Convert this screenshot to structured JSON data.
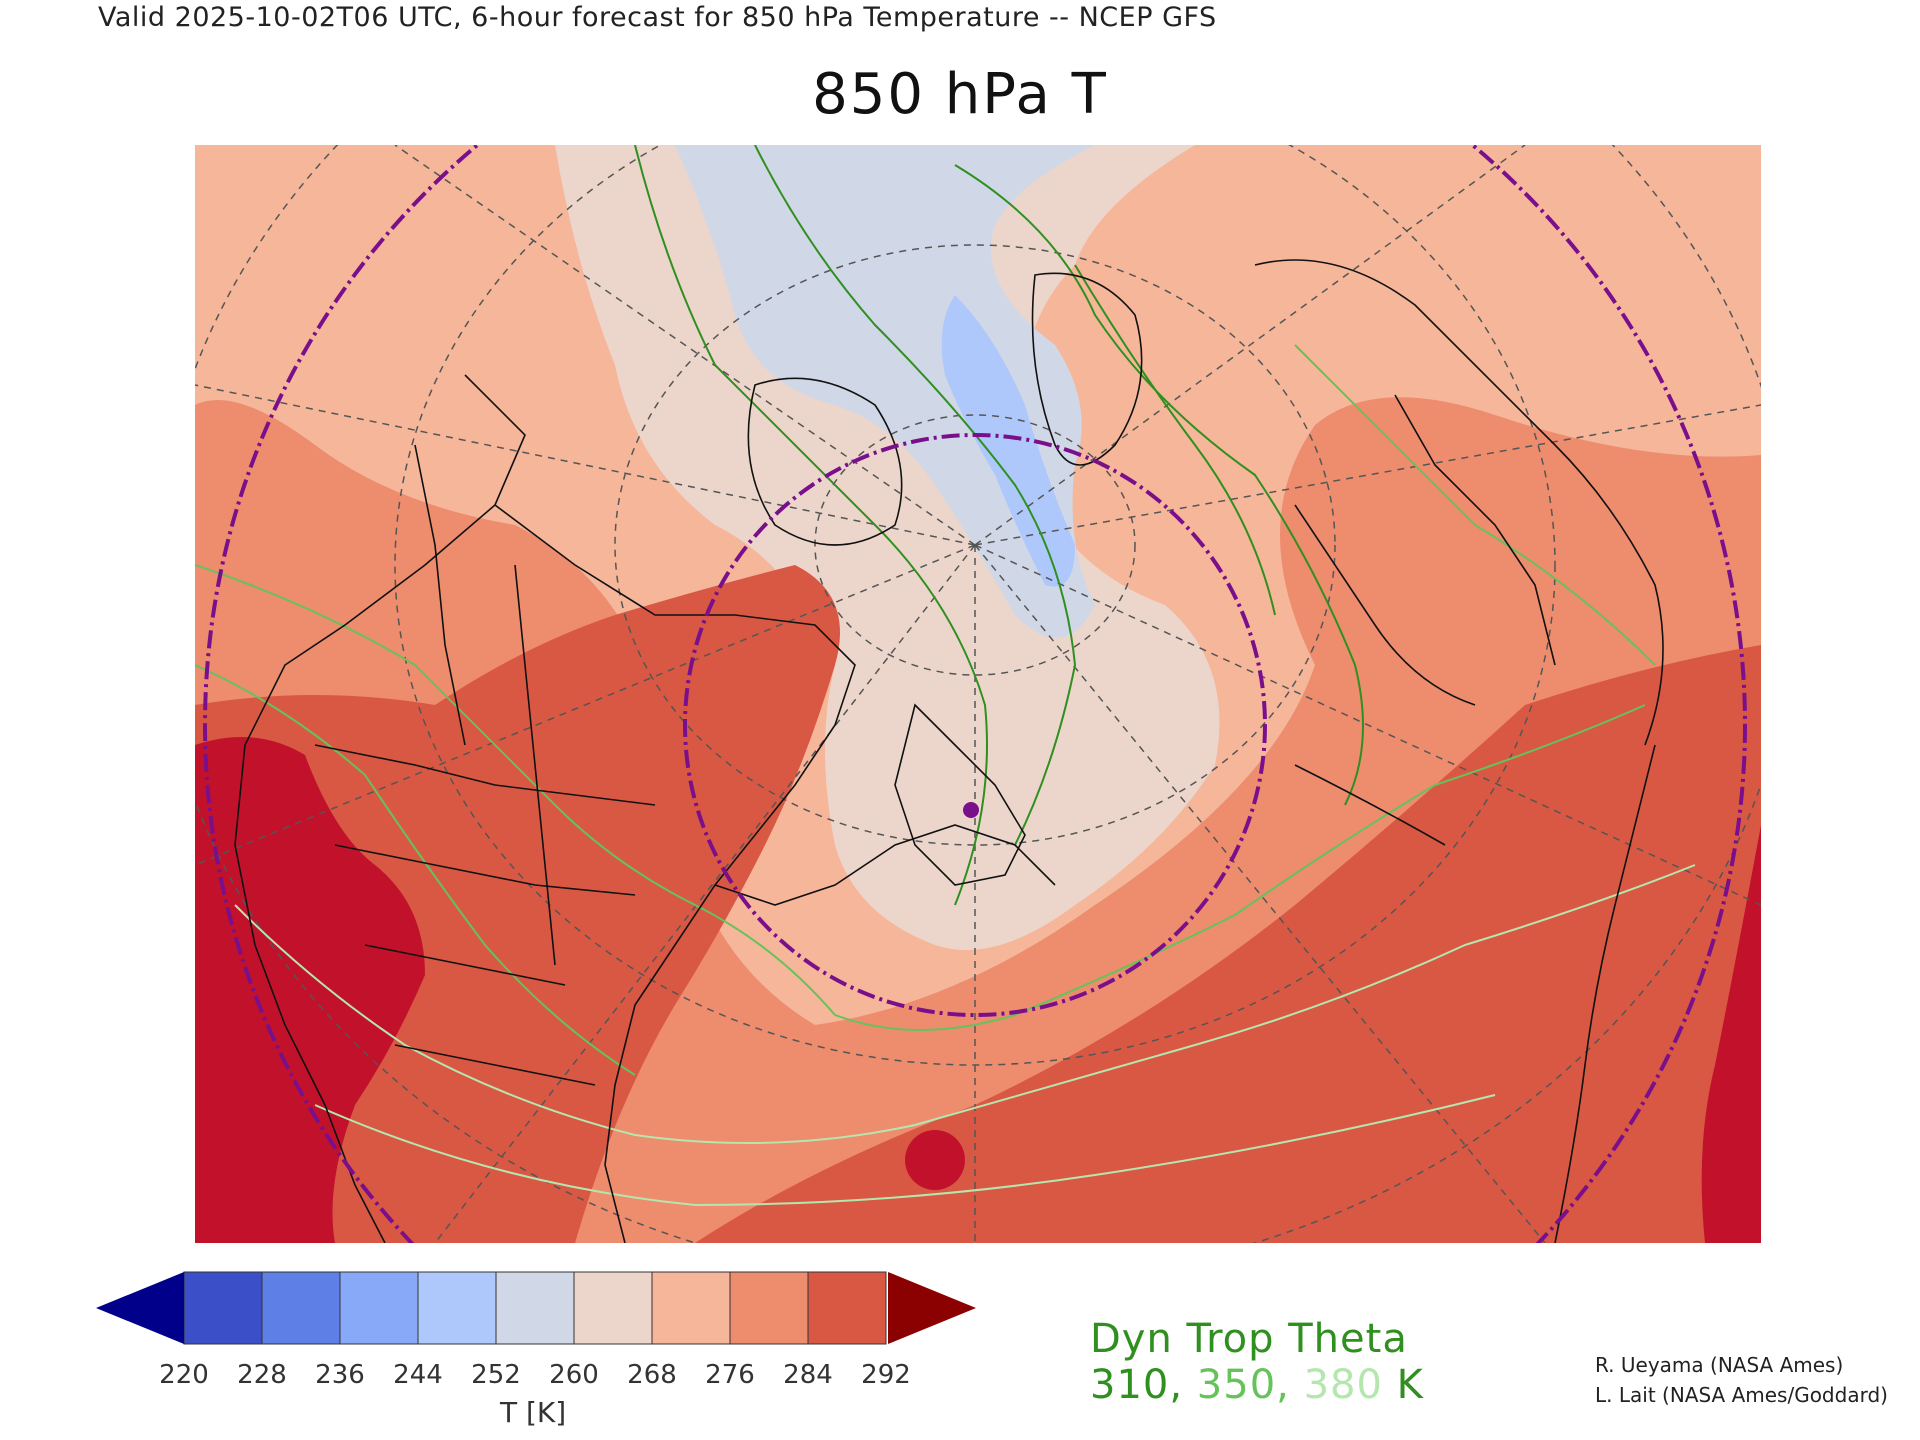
{
  "header": {
    "valid_line": "Valid 2025-10-02T06 UTC, 6-hour forecast for 850 hPa Temperature -- NCEP GFS"
  },
  "title": "850 hPa T",
  "colorbar": {
    "ticks": [
      "220",
      "228",
      "236",
      "244",
      "252",
      "260",
      "268",
      "276",
      "284",
      "292"
    ],
    "unit_label": "T [K]",
    "colors": [
      "#3a4fc8",
      "#5d7fe6",
      "#88a9f7",
      "#afc8fb",
      "#d0d7e6",
      "#ecd6cb",
      "#f5b69a",
      "#ee8c6e",
      "#d95843"
    ],
    "under_color": "#00008b",
    "over_color": "#8b0000"
  },
  "overlay_legend": {
    "title": "Dyn Trop Theta",
    "values": [
      "310",
      "350",
      "380"
    ],
    "separator": ", ",
    "unit": "K",
    "value_colors": [
      "#2f8f1f",
      "#66c25a",
      "#b4e6ae"
    ]
  },
  "credits": [
    "R. Ueyama (NASA Ames)",
    "L. Lait (NASA Ames/Goddard)"
  ],
  "map": {
    "colors": {
      "very_warm": "#c2122b",
      "warm": "#d95843",
      "mild": "#ee8c6e",
      "cool": "#f5b69a",
      "cold": "#ecd6cb",
      "colder": "#d0d7e6",
      "coldest": "#afc8fb",
      "contour_dark": "#2f8f1f",
      "contour_mid": "#66c25a",
      "contour_light": "#b4e6ae",
      "boundary": "#111111",
      "grid": "#555555",
      "ring": "#7a0f8c"
    }
  }
}
